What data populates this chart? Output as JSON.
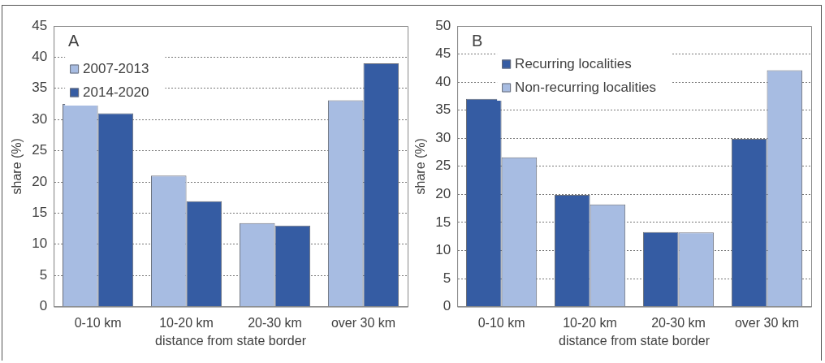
{
  "chart_data": [
    {
      "type": "bar",
      "title": "A",
      "xlabel": "distance from state border",
      "ylabel": "share (%)",
      "categories": [
        "0-10 km",
        "10-20 km",
        "20-30 km",
        "over 30 km"
      ],
      "series": [
        {
          "name": "2007-2013",
          "color": "#a7bce2",
          "values": [
            32.5,
            21.0,
            13.4,
            33.1
          ]
        },
        {
          "name": "2014-2020",
          "color": "#355ca3",
          "values": [
            31.0,
            16.9,
            13.0,
            39.0
          ]
        }
      ],
      "ylim": [
        0,
        45
      ],
      "yticks": [
        0,
        5,
        10,
        15,
        20,
        25,
        30,
        35,
        40,
        45
      ],
      "grid": "y",
      "legend": "top left"
    },
    {
      "type": "bar",
      "title": "B",
      "xlabel": "distance from state border",
      "ylabel": "share (%)",
      "categories": [
        "0-10 km",
        "10-20 km",
        "20-30 km",
        "over 30 km"
      ],
      "series": [
        {
          "name": "Recurring localities",
          "color": "#355ca3",
          "values": [
            37.0,
            19.9,
            13.3,
            29.9
          ]
        },
        {
          "name": "Non-recurring localities",
          "color": "#a7bce2",
          "values": [
            26.6,
            18.2,
            13.2,
            42.1
          ]
        }
      ],
      "ylim": [
        0,
        50
      ],
      "yticks": [
        0,
        5,
        10,
        15,
        20,
        25,
        30,
        35,
        40,
        45,
        50
      ],
      "grid": "y",
      "legend": "top left"
    }
  ]
}
